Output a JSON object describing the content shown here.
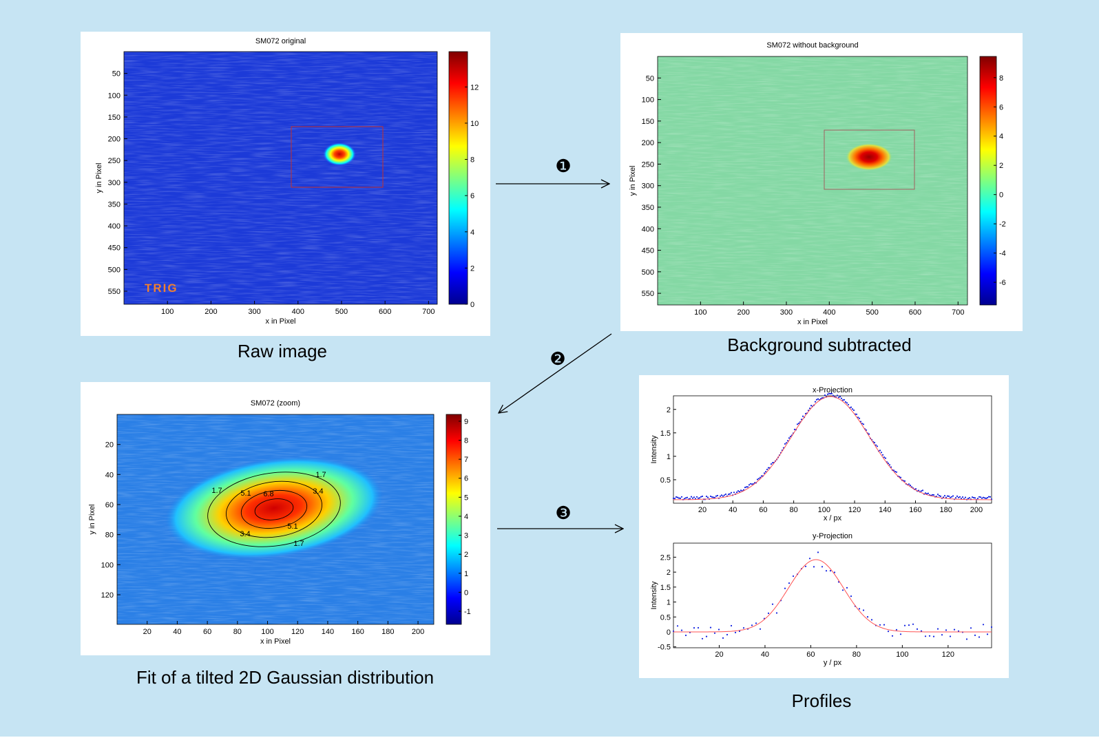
{
  "steps": [
    "❶",
    "❷",
    "❸"
  ],
  "panels": [
    {
      "title": "SM072 original",
      "xlabel": "x in Pixel",
      "ylabel": "y in Pixel",
      "xlim": [
        0,
        720
      ],
      "ylim": [
        0,
        580
      ],
      "xticks": [
        100,
        200,
        300,
        400,
        500,
        600,
        700
      ],
      "yticks": [
        50,
        100,
        150,
        200,
        250,
        300,
        350,
        400,
        450,
        500,
        550
      ],
      "clim": [
        0,
        13.95
      ],
      "cticks": [
        0,
        2,
        4,
        6,
        8,
        10,
        12
      ],
      "annotation": "TRIG",
      "caption": "Raw image"
    },
    {
      "title": "SM072 without background",
      "xlabel": "x in Pixel",
      "ylabel": "y in Pixel",
      "xlim": [
        0,
        722
      ],
      "ylim": [
        0,
        577
      ],
      "xticks": [
        100,
        200,
        300,
        400,
        500,
        600,
        700
      ],
      "yticks": [
        50,
        100,
        150,
        200,
        250,
        300,
        350,
        400,
        450,
        500,
        550
      ],
      "clim": [
        -7.55,
        9.45
      ],
      "cticks": [
        -6,
        -4,
        -2,
        0,
        2,
        4,
        6,
        8
      ],
      "caption": "Background subtracted"
    },
    {
      "title": "SM072 (zoom)",
      "xlabel": "x in Pixel",
      "ylabel": "y in Pixel",
      "xlim": [
        0,
        210.5
      ],
      "ylim": [
        0,
        139.7
      ],
      "xticks": [
        20,
        40,
        60,
        80,
        100,
        120,
        140,
        160,
        180,
        200
      ],
      "yticks": [
        20,
        40,
        60,
        80,
        100,
        120
      ],
      "clim": [
        -1.69,
        9.36
      ],
      "cticks": [
        -1,
        0,
        1,
        2,
        3,
        4,
        5,
        6,
        7,
        8,
        9
      ],
      "contour_labels": [
        "1.7",
        "3.4",
        "5.1",
        "6.8"
      ],
      "caption": "Fit of a tilted 2D Gaussian distribution"
    }
  ],
  "profiles": {
    "caption": "Profiles",
    "plots": [
      {
        "title": "x-Projection",
        "xlabel": "x / px",
        "ylabel": "Intensity",
        "xlim": [
          1,
          210
        ],
        "ylim": [
          0,
          2.29
        ],
        "xticks": [
          20,
          40,
          60,
          80,
          100,
          120,
          140,
          160,
          180,
          200
        ],
        "yticks": [
          0.5,
          1,
          1.5,
          2
        ]
      },
      {
        "title": "y-Projection",
        "xlabel": "y / px",
        "ylabel": "Intensity",
        "xlim": [
          0,
          139
        ],
        "ylim": [
          -0.53,
          2.97
        ],
        "xticks": [
          20,
          40,
          60,
          80,
          100,
          120
        ],
        "yticks": [
          -0.5,
          0,
          0.5,
          1,
          1.5,
          2,
          2.5
        ]
      }
    ]
  }
}
